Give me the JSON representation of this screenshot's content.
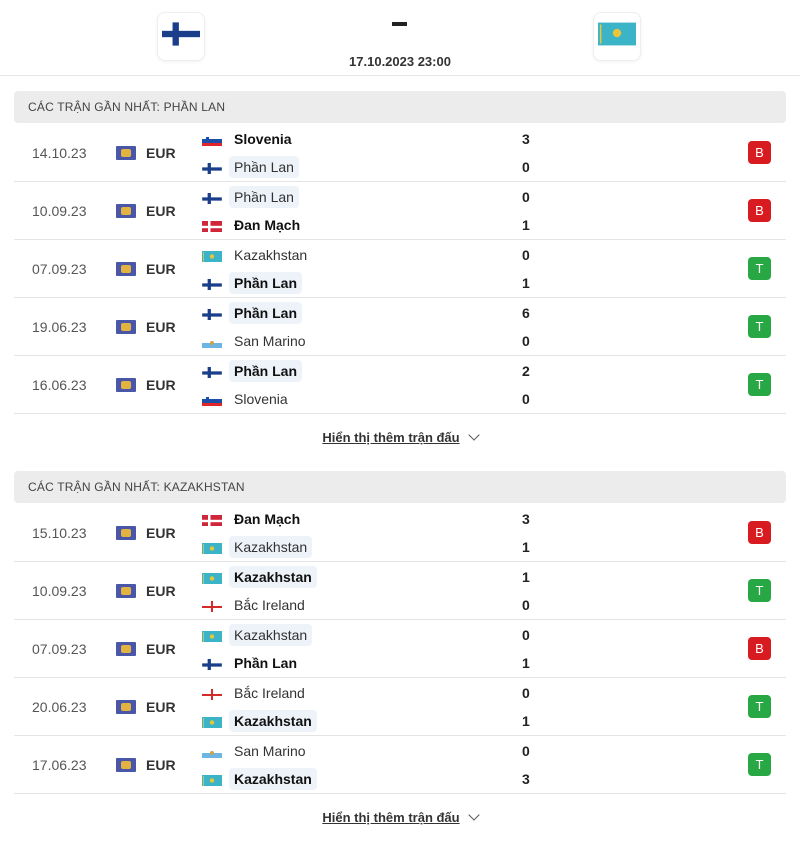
{
  "match": {
    "home_flag": "finland",
    "away_flag": "kazakhstan",
    "score": "-",
    "kickoff": "17.10.2023 23:00"
  },
  "colors": {
    "loss": "#d81b21",
    "win": "#27a844",
    "highlight": "#eef3f9"
  },
  "sections": [
    {
      "title": "CÁC TRẬN GẦN NHẤT: PHẦN LAN",
      "more": "Hiển thị thêm trận đấu",
      "rows": [
        {
          "date": "14.10.23",
          "league": "EUR",
          "t1": {
            "name": "Slovenia",
            "flag": "slovenia",
            "score": "3",
            "bold": true,
            "hl": false
          },
          "t2": {
            "name": "Phần Lan",
            "flag": "finland",
            "score": "0",
            "bold": false,
            "hl": true
          },
          "result": "B"
        },
        {
          "date": "10.09.23",
          "league": "EUR",
          "t1": {
            "name": "Phần Lan",
            "flag": "finland",
            "score": "0",
            "bold": false,
            "hl": true
          },
          "t2": {
            "name": "Đan Mạch",
            "flag": "denmark",
            "score": "1",
            "bold": true,
            "hl": false
          },
          "result": "B"
        },
        {
          "date": "07.09.23",
          "league": "EUR",
          "t1": {
            "name": "Kazakhstan",
            "flag": "kazakhstan",
            "score": "0",
            "bold": false,
            "hl": false
          },
          "t2": {
            "name": "Phần Lan",
            "flag": "finland",
            "score": "1",
            "bold": true,
            "hl": true
          },
          "result": "T"
        },
        {
          "date": "19.06.23",
          "league": "EUR",
          "t1": {
            "name": "Phần Lan",
            "flag": "finland",
            "score": "6",
            "bold": true,
            "hl": true
          },
          "t2": {
            "name": "San Marino",
            "flag": "san-marino",
            "score": "0",
            "bold": false,
            "hl": false
          },
          "result": "T"
        },
        {
          "date": "16.06.23",
          "league": "EUR",
          "t1": {
            "name": "Phần Lan",
            "flag": "finland",
            "score": "2",
            "bold": true,
            "hl": true
          },
          "t2": {
            "name": "Slovenia",
            "flag": "slovenia",
            "score": "0",
            "bold": false,
            "hl": false
          },
          "result": "T"
        }
      ]
    },
    {
      "title": "CÁC TRẬN GẦN NHẤT: KAZAKHSTAN",
      "more": "Hiển thị thêm trận đấu",
      "rows": [
        {
          "date": "15.10.23",
          "league": "EUR",
          "t1": {
            "name": "Đan Mạch",
            "flag": "denmark",
            "score": "3",
            "bold": true,
            "hl": false
          },
          "t2": {
            "name": "Kazakhstan",
            "flag": "kazakhstan",
            "score": "1",
            "bold": false,
            "hl": true
          },
          "result": "B"
        },
        {
          "date": "10.09.23",
          "league": "EUR",
          "t1": {
            "name": "Kazakhstan",
            "flag": "kazakhstan",
            "score": "1",
            "bold": true,
            "hl": true
          },
          "t2": {
            "name": "Bắc Ireland",
            "flag": "northern-ireland",
            "score": "0",
            "bold": false,
            "hl": false
          },
          "result": "T"
        },
        {
          "date": "07.09.23",
          "league": "EUR",
          "t1": {
            "name": "Kazakhstan",
            "flag": "kazakhstan",
            "score": "0",
            "bold": false,
            "hl": true
          },
          "t2": {
            "name": "Phần Lan",
            "flag": "finland",
            "score": "1",
            "bold": true,
            "hl": false
          },
          "result": "B"
        },
        {
          "date": "20.06.23",
          "league": "EUR",
          "t1": {
            "name": "Bắc Ireland",
            "flag": "northern-ireland",
            "score": "0",
            "bold": false,
            "hl": false
          },
          "t2": {
            "name": "Kazakhstan",
            "flag": "kazakhstan",
            "score": "1",
            "bold": true,
            "hl": true
          },
          "result": "T"
        },
        {
          "date": "17.06.23",
          "league": "EUR",
          "t1": {
            "name": "San Marino",
            "flag": "san-marino",
            "score": "0",
            "bold": false,
            "hl": false
          },
          "t2": {
            "name": "Kazakhstan",
            "flag": "kazakhstan",
            "score": "3",
            "bold": true,
            "hl": true
          },
          "result": "T"
        }
      ]
    }
  ]
}
